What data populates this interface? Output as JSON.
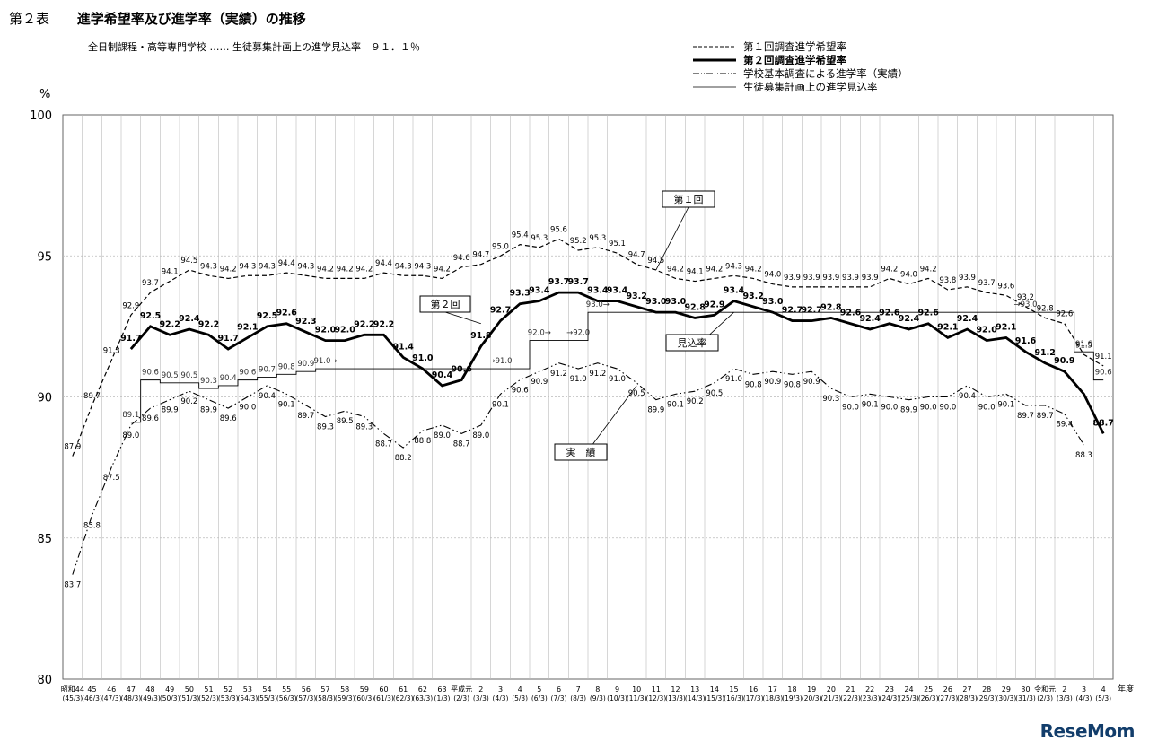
{
  "header": {
    "table_no": "第２表",
    "title": "進学希望率及び進学率（実績）の推移",
    "subtitle": "全日制課程・高等専門学校 …… 生徒募集計画上の進学見込率　９１．１％"
  },
  "watermark": "ReseMom",
  "chart_data": {
    "type": "line",
    "ylabel": "%",
    "xlabel": "年度",
    "ylim": [
      80,
      100
    ],
    "yticks": [
      80,
      85,
      90,
      95,
      100
    ],
    "grid": true,
    "legend_position": "top-right",
    "x_labels": [
      {
        "top": "昭和44",
        "bottom": "(45/3)"
      },
      {
        "top": "45",
        "bottom": "(46/3)"
      },
      {
        "top": "46",
        "bottom": "(47/3)"
      },
      {
        "top": "47",
        "bottom": "(48/3)"
      },
      {
        "top": "48",
        "bottom": "(49/3)"
      },
      {
        "top": "49",
        "bottom": "(50/3)"
      },
      {
        "top": "50",
        "bottom": "(51/3)"
      },
      {
        "top": "51",
        "bottom": "(52/3)"
      },
      {
        "top": "52",
        "bottom": "(53/3)"
      },
      {
        "top": "53",
        "bottom": "(54/3)"
      },
      {
        "top": "54",
        "bottom": "(55/3)"
      },
      {
        "top": "55",
        "bottom": "(56/3)"
      },
      {
        "top": "56",
        "bottom": "(57/3)"
      },
      {
        "top": "57",
        "bottom": "(58/3)"
      },
      {
        "top": "58",
        "bottom": "(59/3)"
      },
      {
        "top": "59",
        "bottom": "(60/3)"
      },
      {
        "top": "60",
        "bottom": "(61/3)"
      },
      {
        "top": "61",
        "bottom": "(62/3)"
      },
      {
        "top": "62",
        "bottom": "(63/3)"
      },
      {
        "top": "63",
        "bottom": "(1/3)"
      },
      {
        "top": "平成元",
        "bottom": "(2/3)"
      },
      {
        "top": "2",
        "bottom": "(3/3)"
      },
      {
        "top": "3",
        "bottom": "(4/3)"
      },
      {
        "top": "4",
        "bottom": "(5/3)"
      },
      {
        "top": "5",
        "bottom": "(6/3)"
      },
      {
        "top": "6",
        "bottom": "(7/3)"
      },
      {
        "top": "7",
        "bottom": "(8/3)"
      },
      {
        "top": "8",
        "bottom": "(9/3)"
      },
      {
        "top": "9",
        "bottom": "(10/3)"
      },
      {
        "top": "10",
        "bottom": "(11/3)"
      },
      {
        "top": "11",
        "bottom": "(12/3)"
      },
      {
        "top": "12",
        "bottom": "(13/3)"
      },
      {
        "top": "13",
        "bottom": "(14/3)"
      },
      {
        "top": "14",
        "bottom": "(15/3)"
      },
      {
        "top": "15",
        "bottom": "(16/3)"
      },
      {
        "top": "16",
        "bottom": "(17/3)"
      },
      {
        "top": "17",
        "bottom": "(18/3)"
      },
      {
        "top": "18",
        "bottom": "(19/3)"
      },
      {
        "top": "19",
        "bottom": "(20/3)"
      },
      {
        "top": "20",
        "bottom": "(21/3)"
      },
      {
        "top": "21",
        "bottom": "(22/3)"
      },
      {
        "top": "22",
        "bottom": "(23/3)"
      },
      {
        "top": "23",
        "bottom": "(24/3)"
      },
      {
        "top": "24",
        "bottom": "(25/3)"
      },
      {
        "top": "25",
        "bottom": "(26/3)"
      },
      {
        "top": "26",
        "bottom": "(27/3)"
      },
      {
        "top": "27",
        "bottom": "(28/3)"
      },
      {
        "top": "28",
        "bottom": "(29/3)"
      },
      {
        "top": "29",
        "bottom": "(30/3)"
      },
      {
        "top": "30",
        "bottom": "(31/3)"
      },
      {
        "top": "令和元",
        "bottom": "(2/3)"
      },
      {
        "top": "2",
        "bottom": "(3/3)"
      },
      {
        "top": "3",
        "bottom": "(4/3)"
      },
      {
        "top": "4",
        "bottom": "(5/3)"
      }
    ],
    "series": [
      {
        "name": "第１回調査進学希望率",
        "style": "dashed",
        "values": [
          87.9,
          89.7,
          91.3,
          92.9,
          93.7,
          94.1,
          94.5,
          94.3,
          94.2,
          94.3,
          94.3,
          94.4,
          94.3,
          94.2,
          94.2,
          94.2,
          94.4,
          94.3,
          94.3,
          94.2,
          94.6,
          94.7,
          95.0,
          95.4,
          95.3,
          95.6,
          95.2,
          95.3,
          95.1,
          94.7,
          94.5,
          94.2,
          94.1,
          94.2,
          94.3,
          94.2,
          94.0,
          93.9,
          93.9,
          93.9,
          93.9,
          93.9,
          94.2,
          94.0,
          94.2,
          93.8,
          93.9,
          93.7,
          93.6,
          93.2,
          92.8,
          92.6,
          91.5,
          91.1
        ],
        "labels": [
          "87.9",
          "89.7",
          "91.3",
          "92.9",
          "93.7",
          "94.1",
          "94.5",
          "94.3",
          "94.2",
          "94.3",
          "94.3",
          "94.4",
          "94.3",
          "94.2",
          "94.2",
          "94.2",
          "94.4",
          "94.3",
          "94.3",
          "94.2",
          "94.6",
          "94.7",
          "95.0",
          "95.4",
          "95.3",
          "95.6",
          "95.2",
          "95.3",
          "95.1",
          "94.7",
          "94.5",
          "94.2",
          "94.1",
          "94.2",
          "94.3",
          "94.2",
          "94.0",
          "93.9",
          "93.9",
          "93.9",
          "93.9",
          "93.9",
          "94.2",
          "94.0",
          "94.2",
          "93.8",
          "93.9",
          "93.7",
          "93.6",
          "93.2",
          "92.8",
          "92.6",
          "91.5",
          "91.1"
        ]
      },
      {
        "name": "第２回調査進学希望率",
        "style": "bold",
        "start_index": 3,
        "values": [
          91.7,
          92.5,
          92.2,
          92.4,
          92.2,
          91.7,
          92.1,
          92.5,
          92.6,
          92.3,
          92.0,
          92.0,
          92.2,
          92.2,
          91.4,
          91.0,
          90.4,
          90.6,
          91.8,
          92.7,
          93.3,
          93.4,
          93.7,
          93.7,
          93.4,
          93.4,
          93.2,
          93.0,
          93.0,
          92.8,
          92.9,
          93.4,
          93.2,
          93.0,
          92.7,
          92.7,
          92.8,
          92.6,
          92.4,
          92.6,
          92.4,
          92.6,
          92.1,
          92.4,
          92.0,
          92.1,
          91.6,
          91.2,
          90.9,
          90.1,
          88.7
        ],
        "labels": [
          "91.7",
          "92.5",
          "92.2",
          "92.4",
          "92.2",
          "91.7",
          "92.1",
          "92.5",
          "92.6",
          "92.3",
          "92.0",
          "92.0",
          "92.2",
          "92.2",
          "91.4",
          "91.0",
          "90.4",
          "90.6",
          "91.8",
          "92.7",
          "93.3",
          "93.4",
          "93.7",
          "93.7",
          "93.4",
          "93.4",
          "93.2",
          "93.0",
          "93.0",
          "92.8",
          "92.9",
          "93.4",
          "93.2",
          "93.0",
          "92.7",
          "92.7",
          "92.8",
          "92.6",
          "92.4",
          "92.6",
          "92.4",
          "92.6",
          "92.1",
          "92.4",
          "92.0",
          "92.1",
          "91.6",
          "91.2",
          "90.9",
          "",
          "88.7"
        ]
      },
      {
        "name": "学校基本調査による進学率（実績）",
        "style": "dashdot",
        "values": [
          83.7,
          85.8,
          87.5,
          89.0,
          89.6,
          89.9,
          90.2,
          89.9,
          89.6,
          90.0,
          90.4,
          90.1,
          89.7,
          89.3,
          89.5,
          89.3,
          88.7,
          88.2,
          88.8,
          89.0,
          88.7,
          89.0,
          90.1,
          90.6,
          90.9,
          91.2,
          91.0,
          91.2,
          91.0,
          90.5,
          89.9,
          90.1,
          90.2,
          90.5,
          91.0,
          90.8,
          90.9,
          90.8,
          90.9,
          90.3,
          90.0,
          90.1,
          90.0,
          89.9,
          90.0,
          90.0,
          90.4,
          90.0,
          90.1,
          89.7,
          89.7,
          89.4,
          88.3
        ],
        "labels": [
          "83.7",
          "85.8",
          "87.5",
          "89.0",
          "89.6",
          "89.9",
          "90.2",
          "89.9",
          "89.6",
          "90.0",
          "90.4",
          "90.1",
          "89.7",
          "89.3",
          "89.5",
          "89.3",
          "88.7",
          "88.2",
          "88.8",
          "89.0",
          "88.7",
          "89.0",
          "90.1",
          "90.6",
          "90.9",
          "91.2",
          "91.0",
          "91.2",
          "91.0",
          "90.5",
          "89.9",
          "90.1",
          "90.2",
          "90.5",
          "91.0",
          "90.8",
          "90.9",
          "90.8",
          "90.9",
          "90.3",
          "90.0",
          "90.1",
          "90.0",
          "89.9",
          "90.0",
          "90.0",
          "90.4",
          "90.0",
          "90.1",
          "89.7",
          "89.7",
          "89.4",
          "88.3"
        ]
      },
      {
        "name": "生徒募集計画上の進学見込率",
        "style": "thin",
        "values": [
          null,
          null,
          null,
          89.1,
          90.6,
          90.5,
          90.5,
          90.3,
          90.4,
          90.6,
          90.7,
          90.8,
          90.9,
          91.0,
          91.0,
          91.0,
          91.0,
          91.0,
          91.0,
          91.0,
          91.0,
          91.0,
          91.0,
          91.0,
          92.0,
          92.0,
          92.0,
          93.0,
          93.0,
          93.0,
          93.0,
          93.0,
          93.0,
          93.0,
          93.0,
          93.0,
          93.0,
          93.0,
          93.0,
          93.0,
          93.0,
          93.0,
          93.0,
          93.0,
          93.0,
          93.0,
          93.0,
          93.0,
          93.0,
          93.0,
          93.0,
          93.0,
          91.6,
          90.6
        ],
        "labels": [
          "",
          "",
          "",
          "89.1",
          "90.6",
          "90.5",
          "90.5",
          "90.3",
          "90.4",
          "90.6",
          "90.7",
          "90.8",
          "90.9",
          "91.0→",
          "",
          "",
          "",
          "",
          "",
          "",
          "",
          "",
          "→91.0",
          "",
          "92.0→",
          "",
          "→92.0",
          "93.0→",
          "",
          "",
          "",
          "",
          "",
          "",
          "",
          "",
          "",
          "",
          "",
          "",
          "",
          "",
          "",
          "",
          "",
          "",
          "",
          "",
          "",
          "→93.0",
          "",
          "",
          "91.6",
          "90.6"
        ]
      }
    ],
    "annotations": [
      "第１回",
      "第２回",
      "見込率",
      "実　績"
    ]
  }
}
